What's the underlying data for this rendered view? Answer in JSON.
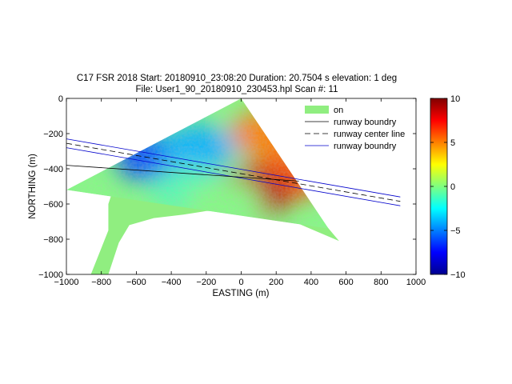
{
  "chart_data": {
    "type": "heatmap",
    "title_line1": "C17 FSR 2018  Start: 20180910_23:08:20 Duration: 20.7504 s elevation: 1 deg",
    "title_line2": "File: User1_90_20180910_230453.hpl  Scan #: 11",
    "xlabel": "EASTING (m)",
    "ylabel": "NORTHING (m)",
    "xlim": [
      -1000,
      1000
    ],
    "ylim": [
      -1000,
      0
    ],
    "x_ticks": [
      -1000,
      -800,
      -600,
      -400,
      -200,
      0,
      200,
      400,
      600,
      800,
      1000
    ],
    "x_tick_labels": [
      "−1000",
      "−800",
      "−600",
      "−400",
      "−200",
      "0",
      "200",
      "400",
      "600",
      "800",
      "1000"
    ],
    "y_ticks": [
      0,
      -200,
      -400,
      -600,
      -800,
      -1000
    ],
    "y_tick_labels": [
      "0",
      "−200",
      "−400",
      "−600",
      "−800",
      "−1000"
    ],
    "colorbar": {
      "colormap": "jet",
      "range": [
        -10,
        10
      ],
      "ticks": [
        10,
        5,
        0,
        -5,
        -10
      ],
      "tick_labels": [
        "10",
        "5",
        "0",
        "−5",
        "−10"
      ]
    },
    "legend": {
      "placement": "top-right",
      "entries": [
        {
          "label": "on",
          "style": "patch",
          "color": "#90ee80"
        },
        {
          "label": "runway boundry",
          "style": "solid",
          "color": "#000000"
        },
        {
          "label": "runway center line",
          "style": "dashed",
          "color": "#000000"
        },
        {
          "label": "runway boundry",
          "style": "solid",
          "color": "#0000cc"
        }
      ]
    },
    "scan_origin": [
      0,
      0
    ],
    "scan_sector_edges": [
      {
        "x": -1000,
        "y": -520
      },
      {
        "x": 500,
        "y": -740
      }
    ],
    "ground_mask_polygon": [
      [
        -720,
        -480
      ],
      [
        -600,
        -480
      ],
      [
        -450,
        -470
      ],
      [
        -300,
        -480
      ],
      [
        -150,
        -490
      ],
      [
        50,
        -540
      ],
      [
        250,
        -580
      ],
      [
        450,
        -680
      ],
      [
        560,
        -810
      ],
      [
        300,
        -700
      ],
      [
        100,
        -660
      ],
      [
        -50,
        -640
      ],
      [
        -200,
        -640
      ],
      [
        -330,
        -660
      ],
      [
        -500,
        -680
      ],
      [
        -640,
        -720
      ],
      [
        -700,
        -820
      ],
      [
        -760,
        -1000
      ],
      [
        -860,
        -1000
      ],
      [
        -760,
        -750
      ],
      [
        -760,
        -600
      ]
    ],
    "series": [
      {
        "name": "runway boundry",
        "x": [
          -1000,
          910
        ],
        "y": [
          -230,
          -560
        ],
        "style": "solid",
        "color": "#0000cc"
      },
      {
        "name": "runway boundry",
        "x": [
          -1000,
          910
        ],
        "y": [
          -280,
          -610
        ],
        "style": "solid",
        "color": "#0000cc"
      },
      {
        "name": "runway boundry",
        "x": [
          -1000,
          330
        ],
        "y": [
          -380,
          -470
        ],
        "style": "solid",
        "color": "#000000"
      },
      {
        "name": "runway center line",
        "x": [
          -1000,
          910
        ],
        "y": [
          -255,
          -585
        ],
        "style": "dashed",
        "color": "#000000"
      }
    ],
    "regions": [
      {
        "x": 150,
        "y": -200,
        "value": 5
      },
      {
        "x": 250,
        "y": -450,
        "value": 6
      },
      {
        "x": 60,
        "y": -540,
        "value": 9
      },
      {
        "x": -500,
        "y": -340,
        "value": -6
      },
      {
        "x": -250,
        "y": -280,
        "value": -4
      },
      {
        "x": -300,
        "y": -520,
        "value": -1
      },
      {
        "x": -100,
        "y": -600,
        "value": 0
      },
      {
        "x": -750,
        "y": -900,
        "value": -2
      }
    ]
  }
}
